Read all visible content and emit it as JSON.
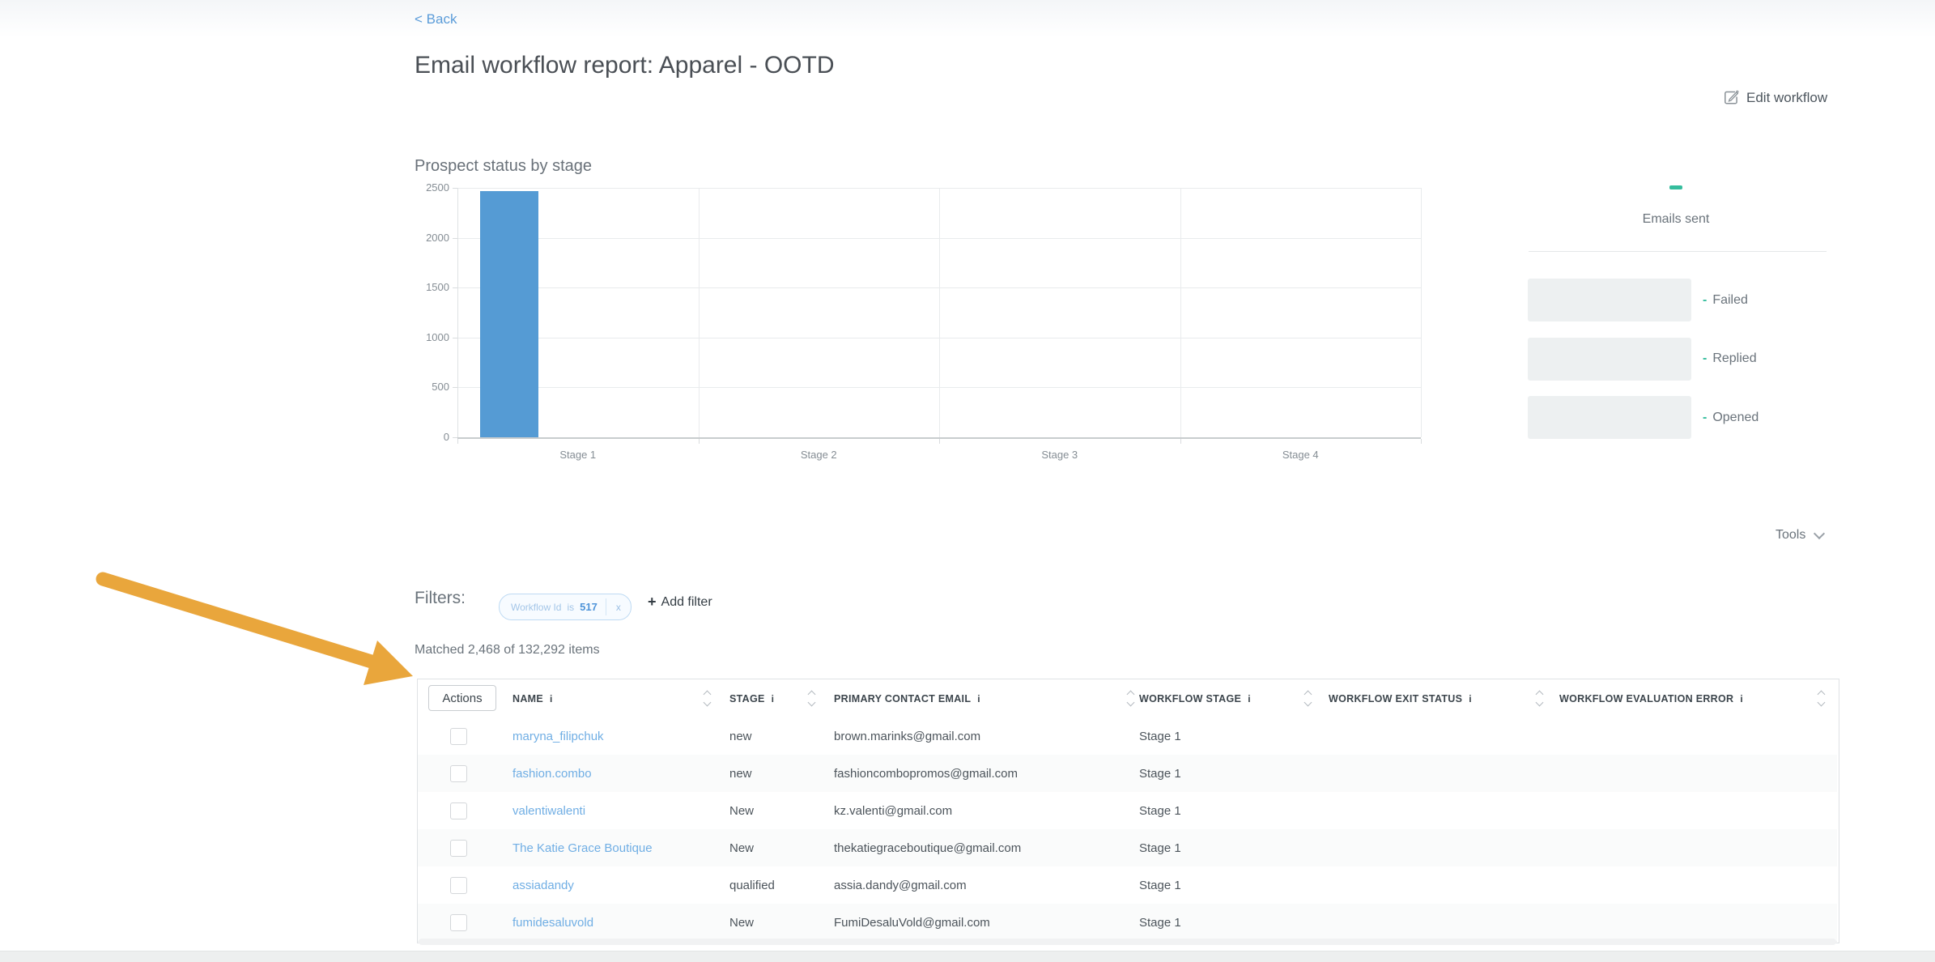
{
  "header": {
    "back": "< Back",
    "title": "Email workflow report: Apparel - OOTD",
    "edit_workflow": "Edit workflow"
  },
  "chart_data": {
    "type": "bar",
    "title": "Prospect status by stage",
    "categories": [
      "Stage 1",
      "Stage 2",
      "Stage 3",
      "Stage 4"
    ],
    "series": [
      {
        "name": "Emails sent",
        "values": [
          2468,
          0,
          0,
          0
        ],
        "color": "#559bd4"
      }
    ],
    "xlabel": "",
    "ylabel": "",
    "ylim": [
      0,
      2500
    ],
    "y_ticks": [
      2500,
      2000,
      1500,
      1000,
      500,
      0
    ],
    "grid": true,
    "legend_position": "right",
    "legend_marker_color": "#35bd9d"
  },
  "legend_panel": {
    "stats": [
      {
        "dash": "-",
        "label": "Failed"
      },
      {
        "dash": "-",
        "label": "Replied"
      },
      {
        "dash": "-",
        "label": "Opened"
      }
    ]
  },
  "toolbar": {
    "tools": "Tools"
  },
  "filters": {
    "label": "Filters:",
    "chip": {
      "field": "Workflow Id",
      "operator": "is",
      "value": "517",
      "remove": "x"
    },
    "add_filter_plus": "+",
    "add_filter": "Add filter"
  },
  "results": {
    "matched": "Matched 2,468 of 132,292 items"
  },
  "table": {
    "actions_label": "Actions",
    "info_glyph": "i",
    "columns": [
      "NAME",
      "STAGE",
      "PRIMARY CONTACT EMAIL",
      "WORKFLOW STAGE",
      "WORKFLOW EXIT STATUS",
      "WORKFLOW EVALUATION ERROR"
    ],
    "rows": [
      {
        "name": "maryna_filipchuk",
        "stage": "new",
        "email": "brown.marinks@gmail.com",
        "workflow_stage": "Stage 1",
        "workflow_exit_status": "",
        "workflow_evaluation_error": ""
      },
      {
        "name": "fashion.combo",
        "stage": "new",
        "email": "fashioncombopromos@gmail.com",
        "workflow_stage": "Stage 1",
        "workflow_exit_status": "",
        "workflow_evaluation_error": ""
      },
      {
        "name": "valentiwalenti",
        "stage": "New",
        "email": "kz.valenti@gmail.com",
        "workflow_stage": "Stage 1",
        "workflow_exit_status": "",
        "workflow_evaluation_error": ""
      },
      {
        "name": "The Katie Grace Boutique",
        "stage": "New",
        "email": "thekatiegraceboutique@gmail.com",
        "workflow_stage": "Stage 1",
        "workflow_exit_status": "",
        "workflow_evaluation_error": ""
      },
      {
        "name": "assiadandy",
        "stage": "qualified",
        "email": "assia.dandy@gmail.com",
        "workflow_stage": "Stage 1",
        "workflow_exit_status": "",
        "workflow_evaluation_error": ""
      },
      {
        "name": "fumidesaluvold",
        "stage": "New",
        "email": "FumiDesaluVold@gmail.com",
        "workflow_stage": "Stage 1",
        "workflow_exit_status": "",
        "workflow_evaluation_error": ""
      }
    ]
  },
  "colors": {
    "bar_blue": "#559bd4",
    "legend_teal": "#35bd9d",
    "link_blue": "#5b9cd9",
    "annotation_arrow_orange": "#e9a63c"
  }
}
